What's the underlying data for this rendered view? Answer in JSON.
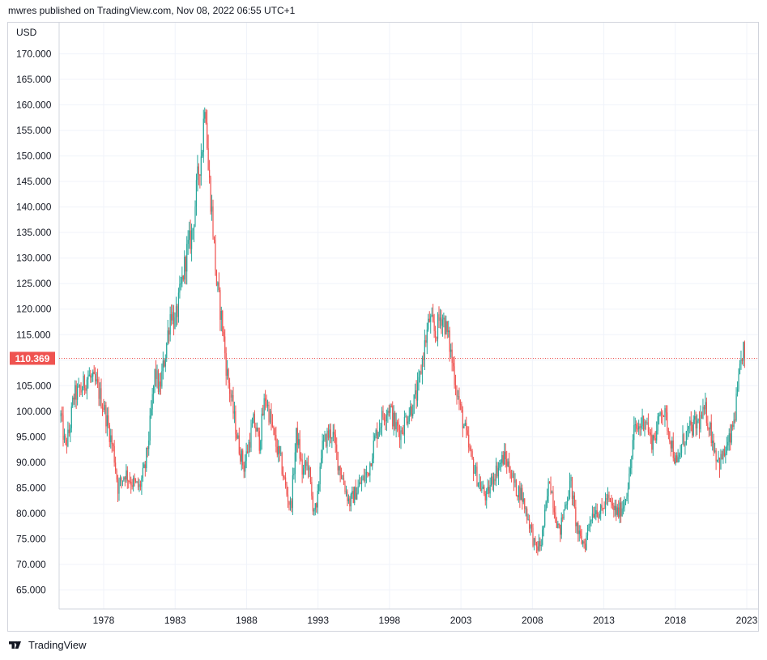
{
  "header": {
    "publish_line": "mwres published on TradingView.com, Nov 08, 2022 06:55 UTC+1"
  },
  "footer": {
    "brand": "TradingView",
    "logo_icon": "tradingview-logo-icon"
  },
  "colors": {
    "up": "#26a69a",
    "down": "#ef5350",
    "grid": "#f0f3fa",
    "axis_text": "#131722",
    "price_tag": "#ef5350"
  },
  "chart_data": {
    "type": "candlestick",
    "currency": "USD",
    "ylim": [
      60,
      175
    ],
    "y_ticks": [
      "65.000",
      "70.000",
      "75.000",
      "80.000",
      "85.000",
      "90.000",
      "95.000",
      "100.000",
      "105.000",
      "110.000",
      "115.000",
      "120.000",
      "125.000",
      "130.000",
      "135.000",
      "140.000",
      "145.000",
      "150.000",
      "155.000",
      "160.000",
      "165.000",
      "170.000"
    ],
    "y_tick_values": [
      65,
      70,
      75,
      80,
      85,
      90,
      95,
      100,
      105,
      110,
      115,
      120,
      125,
      130,
      135,
      140,
      145,
      150,
      155,
      160,
      165,
      170
    ],
    "xlim": [
      1975.0,
      2023.0
    ],
    "x_ticks": [
      "1978",
      "1983",
      "1988",
      "1993",
      "1998",
      "2003",
      "2008",
      "2013",
      "2018",
      "2023"
    ],
    "x_tick_values": [
      1978,
      1983,
      1988,
      1993,
      1998,
      2003,
      2008,
      2013,
      2018,
      2023
    ],
    "last_price": 110.369,
    "last_price_label": "110.369",
    "grid": true,
    "path": [
      [
        1975.0,
        99
      ],
      [
        1975.3,
        93
      ],
      [
        1975.6,
        96
      ],
      [
        1975.9,
        103
      ],
      [
        1976.4,
        104
      ],
      [
        1976.9,
        107
      ],
      [
        1977.5,
        105
      ],
      [
        1978.0,
        101
      ],
      [
        1978.4,
        96
      ],
      [
        1978.7,
        92
      ],
      [
        1979.0,
        85
      ],
      [
        1979.5,
        88
      ],
      [
        1980.0,
        86
      ],
      [
        1980.5,
        85
      ],
      [
        1980.9,
        89
      ],
      [
        1981.2,
        96
      ],
      [
        1981.6,
        108
      ],
      [
        1981.9,
        104
      ],
      [
        1982.3,
        111
      ],
      [
        1982.7,
        120
      ],
      [
        1983.0,
        117
      ],
      [
        1983.4,
        124
      ],
      [
        1983.8,
        131
      ],
      [
        1984.2,
        135
      ],
      [
        1984.6,
        146
      ],
      [
        1984.9,
        152
      ],
      [
        1985.1,
        163
      ],
      [
        1985.3,
        148
      ],
      [
        1985.6,
        138
      ],
      [
        1985.9,
        125
      ],
      [
        1986.3,
        117
      ],
      [
        1986.6,
        108
      ],
      [
        1987.0,
        101
      ],
      [
        1987.4,
        94
      ],
      [
        1987.8,
        89
      ],
      [
        1988.1,
        93
      ],
      [
        1988.5,
        98
      ],
      [
        1988.9,
        94
      ],
      [
        1989.3,
        103
      ],
      [
        1989.7,
        98
      ],
      [
        1990.0,
        94
      ],
      [
        1990.4,
        90
      ],
      [
        1990.8,
        84
      ],
      [
        1991.1,
        81
      ],
      [
        1991.5,
        96
      ],
      [
        1991.9,
        88
      ],
      [
        1992.3,
        90
      ],
      [
        1992.6,
        82
      ],
      [
        1992.9,
        80
      ],
      [
        1993.2,
        92
      ],
      [
        1993.6,
        95
      ],
      [
        1994.0,
        96
      ],
      [
        1994.4,
        90
      ],
      [
        1994.8,
        86
      ],
      [
        1995.2,
        82
      ],
      [
        1995.6,
        84
      ],
      [
        1996.0,
        86
      ],
      [
        1996.5,
        88
      ],
      [
        1997.0,
        95
      ],
      [
        1997.5,
        99
      ],
      [
        1998.0,
        101
      ],
      [
        1998.4,
        97
      ],
      [
        1998.8,
        96
      ],
      [
        1999.2,
        99
      ],
      [
        1999.6,
        101
      ],
      [
        2000.0,
        104
      ],
      [
        2000.4,
        112
      ],
      [
        2000.8,
        118
      ],
      [
        2001.2,
        115
      ],
      [
        2001.6,
        119
      ],
      [
        2001.9,
        117
      ],
      [
        2002.2,
        113
      ],
      [
        2002.6,
        106
      ],
      [
        2002.9,
        101
      ],
      [
        2003.3,
        96
      ],
      [
        2003.6,
        92
      ],
      [
        2004.0,
        88
      ],
      [
        2004.4,
        85
      ],
      [
        2004.8,
        83
      ],
      [
        2005.2,
        87
      ],
      [
        2005.6,
        89
      ],
      [
        2006.0,
        91
      ],
      [
        2006.4,
        89
      ],
      [
        2006.8,
        85
      ],
      [
        2007.2,
        84
      ],
      [
        2007.6,
        80
      ],
      [
        2007.9,
        77
      ],
      [
        2008.2,
        73
      ],
      [
        2008.6,
        74
      ],
      [
        2008.9,
        80
      ],
      [
        2009.2,
        87
      ],
      [
        2009.6,
        80
      ],
      [
        2009.9,
        76
      ],
      [
        2010.3,
        82
      ],
      [
        2010.7,
        86
      ],
      [
        2011.0,
        79
      ],
      [
        2011.3,
        75
      ],
      [
        2011.7,
        74
      ],
      [
        2012.0,
        79
      ],
      [
        2012.4,
        81
      ],
      [
        2012.8,
        80
      ],
      [
        2013.2,
        83
      ],
      [
        2013.6,
        81
      ],
      [
        2014.0,
        80
      ],
      [
        2014.4,
        82
      ],
      [
        2014.8,
        87
      ],
      [
        2015.1,
        96
      ],
      [
        2015.5,
        97
      ],
      [
        2015.9,
        99
      ],
      [
        2016.3,
        94
      ],
      [
        2016.7,
        96
      ],
      [
        2017.0,
        101
      ],
      [
        2017.4,
        98
      ],
      [
        2017.8,
        93
      ],
      [
        2018.1,
        89
      ],
      [
        2018.5,
        94
      ],
      [
        2018.9,
        96
      ],
      [
        2019.3,
        97
      ],
      [
        2019.7,
        98
      ],
      [
        2020.1,
        100
      ],
      [
        2020.4,
        97
      ],
      [
        2020.8,
        92
      ],
      [
        2021.1,
        90
      ],
      [
        2021.5,
        92
      ],
      [
        2021.9,
        95
      ],
      [
        2022.2,
        100
      ],
      [
        2022.5,
        107
      ],
      [
        2022.75,
        113
      ],
      [
        2022.85,
        110.4
      ]
    ]
  }
}
